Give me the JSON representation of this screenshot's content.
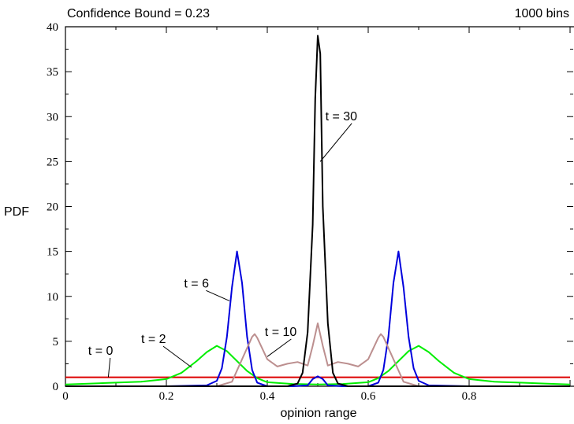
{
  "chart_data": {
    "type": "line",
    "title": "Confidence Bound = 0.23",
    "subtitle": "1000 bins",
    "xlabel": "opinion range",
    "ylabel": "PDF",
    "xlim": [
      0,
      1
    ],
    "ylim": [
      0,
      40
    ],
    "x_ticks": [
      0,
      0.2,
      0.4,
      0.6,
      0.8
    ],
    "x_tick_labels": [
      "0",
      "0.2",
      "0.4",
      "0.6",
      "0.8"
    ],
    "y_ticks": [
      0,
      5,
      10,
      15,
      20,
      25,
      30,
      35,
      40
    ],
    "y_tick_labels": [
      "0",
      "5",
      "10",
      "15",
      "20",
      "25",
      "30",
      "35",
      "40"
    ],
    "grid": false,
    "series": [
      {
        "name": "t = 0",
        "color": "#dd0000",
        "x": [
          0,
          0.1,
          0.2,
          0.3,
          0.4,
          0.5,
          0.6,
          0.7,
          0.8,
          0.9,
          1.0
        ],
        "y": [
          1,
          1,
          1,
          1,
          1,
          1,
          1,
          1,
          1,
          1,
          1
        ]
      },
      {
        "name": "t = 2",
        "color": "#00ee00",
        "x": [
          0,
          0.05,
          0.1,
          0.15,
          0.2,
          0.23,
          0.26,
          0.28,
          0.3,
          0.32,
          0.34,
          0.36,
          0.38,
          0.4,
          0.45,
          0.5,
          0.55,
          0.6,
          0.62,
          0.64,
          0.66,
          0.68,
          0.7,
          0.72,
          0.74,
          0.77,
          0.8,
          0.85,
          0.9,
          0.95,
          1.0
        ],
        "y": [
          0.2,
          0.3,
          0.4,
          0.5,
          0.8,
          1.5,
          2.8,
          3.8,
          4.5,
          3.9,
          2.8,
          1.7,
          0.9,
          0.45,
          0.25,
          0.2,
          0.25,
          0.45,
          0.9,
          1.7,
          2.8,
          3.9,
          4.5,
          3.8,
          2.8,
          1.5,
          0.8,
          0.5,
          0.4,
          0.3,
          0.2
        ]
      },
      {
        "name": "t = 6",
        "color": "#0000dd",
        "x": [
          0,
          0.1,
          0.2,
          0.28,
          0.3,
          0.31,
          0.32,
          0.33,
          0.34,
          0.35,
          0.36,
          0.37,
          0.38,
          0.4,
          0.45,
          0.48,
          0.49,
          0.5,
          0.51,
          0.52,
          0.55,
          0.6,
          0.62,
          0.63,
          0.64,
          0.65,
          0.66,
          0.67,
          0.68,
          0.69,
          0.7,
          0.72,
          0.8,
          0.9,
          1.0
        ],
        "y": [
          0,
          0,
          0,
          0.1,
          0.6,
          2,
          5.5,
          11,
          15,
          11.5,
          5.5,
          1.8,
          0.4,
          0,
          0,
          0.1,
          0.8,
          1.1,
          0.8,
          0.1,
          0,
          0,
          0.4,
          1.8,
          5.5,
          11.5,
          15,
          11,
          5.5,
          2,
          0.6,
          0.1,
          0,
          0,
          0
        ]
      },
      {
        "name": "t = 10",
        "color": "#bc8f8f",
        "x": [
          0,
          0.3,
          0.33,
          0.35,
          0.37,
          0.375,
          0.38,
          0.4,
          0.42,
          0.44,
          0.46,
          0.48,
          0.49,
          0.5,
          0.51,
          0.52,
          0.54,
          0.56,
          0.58,
          0.6,
          0.62,
          0.625,
          0.63,
          0.65,
          0.67,
          0.7,
          1.0
        ],
        "y": [
          0,
          0,
          0.5,
          3,
          5.5,
          5.8,
          5.4,
          3,
          2.2,
          2.5,
          2.7,
          2.3,
          4.5,
          7,
          4.5,
          2.3,
          2.7,
          2.5,
          2.2,
          3,
          5.4,
          5.8,
          5.5,
          3,
          0.5,
          0,
          0
        ]
      },
      {
        "name": "t = 30",
        "color": "#000000",
        "x": [
          0,
          0.44,
          0.46,
          0.47,
          0.48,
          0.49,
          0.495,
          0.5,
          0.505,
          0.51,
          0.52,
          0.53,
          0.54,
          0.56,
          1.0
        ],
        "y": [
          0,
          0,
          0.3,
          1.5,
          6,
          18,
          32,
          39,
          37,
          20,
          7,
          1.5,
          0.3,
          0,
          0
        ]
      }
    ],
    "annotations": [
      {
        "text": "t = 0",
        "x": 0.045,
        "y": 3.5,
        "series": "t = 0",
        "pointer_to": [
          0.085,
          1.0
        ]
      },
      {
        "text": "t = 2",
        "x": 0.15,
        "y": 4.8,
        "series": "t = 2",
        "pointer_to": [
          0.25,
          2.1
        ]
      },
      {
        "text": "t = 6",
        "x": 0.235,
        "y": 11.0,
        "series": "t = 6",
        "pointer_to": [
          0.325,
          9.5
        ]
      },
      {
        "text": "t = 10",
        "x": 0.395,
        "y": 5.6,
        "series": "t = 10",
        "pointer_to": [
          0.4,
          3.3
        ]
      },
      {
        "text": "t = 30",
        "x": 0.515,
        "y": 29.6,
        "series": "t = 30",
        "pointer_to": [
          0.505,
          25.0
        ]
      }
    ]
  }
}
